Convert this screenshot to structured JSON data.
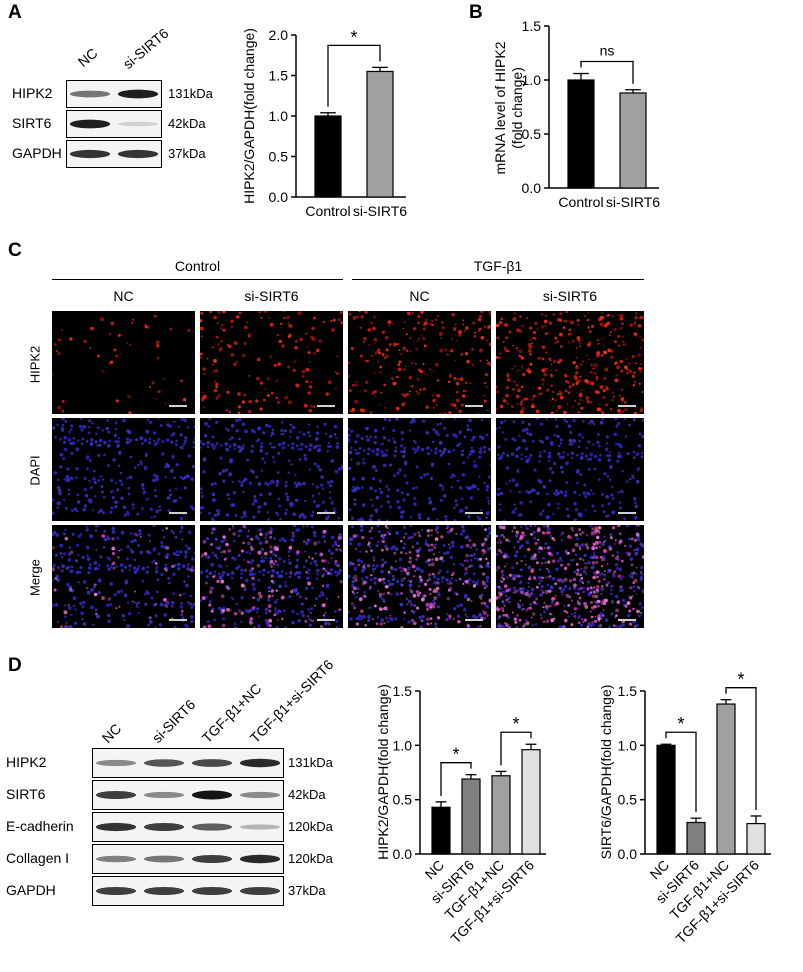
{
  "panels": {
    "A": "A",
    "B": "B",
    "C": "C",
    "D": "D"
  },
  "panelA": {
    "lanes": [
      "NC",
      "si-SIRT6"
    ],
    "bands": [
      {
        "label": "HIPK2",
        "kda": "131kDa",
        "intensity": [
          0.55,
          0.95
        ]
      },
      {
        "label": "SIRT6",
        "kda": "42kDa",
        "intensity": [
          0.95,
          0.12
        ]
      },
      {
        "label": "GAPDH",
        "kda": "37kDa",
        "intensity": [
          0.85,
          0.85
        ]
      }
    ]
  },
  "panelC": {
    "group_headers": [
      "Control",
      "TGF-β1"
    ],
    "columns": [
      "NC",
      "si-SIRT6",
      "NC",
      "si-SIRT6"
    ],
    "rows": [
      "HIPK2",
      "DAPI",
      "Merge"
    ],
    "red_density": [
      0.08,
      0.35,
      0.55,
      0.9
    ]
  },
  "panelD": {
    "lanes": [
      "NC",
      "si-SIRT6",
      "TGF-β1+NC",
      "TGF-β1+si-SIRT6"
    ],
    "bands": [
      {
        "label": "HIPK2",
        "kda": "131kDa",
        "intensity": [
          0.45,
          0.7,
          0.75,
          0.9
        ]
      },
      {
        "label": "SIRT6",
        "kda": "42kDa",
        "intensity": [
          0.8,
          0.45,
          1.0,
          0.45
        ]
      },
      {
        "label": "E-cadherin",
        "kda": "120kDa",
        "intensity": [
          0.85,
          0.8,
          0.65,
          0.25
        ]
      },
      {
        "label": "Collagen I",
        "kda": "120kDa",
        "intensity": [
          0.5,
          0.55,
          0.8,
          0.9
        ]
      },
      {
        "label": "GAPDH",
        "kda": "37kDa",
        "intensity": [
          0.8,
          0.8,
          0.8,
          0.8
        ]
      }
    ]
  },
  "chart_data": [
    {
      "type": "bar",
      "id": "A",
      "categories": [
        "Control",
        "si-SIRT6"
      ],
      "values": [
        1.0,
        1.55
      ],
      "errors": [
        0.04,
        0.05
      ],
      "colors": [
        "#000000",
        "#a0a0a0"
      ],
      "ylabel": "HIPK2/GAPDH(fold change)",
      "ylim": [
        0,
        2.0
      ],
      "yticks": [
        "0.0",
        "0.5",
        "1.0",
        "1.5",
        "2.0"
      ],
      "sig": [
        {
          "from": 0,
          "to": 1,
          "label": "*"
        }
      ]
    },
    {
      "type": "bar",
      "id": "B",
      "categories": [
        "Control",
        "si-SIRT6"
      ],
      "values": [
        1.0,
        0.88
      ],
      "errors": [
        0.06,
        0.03
      ],
      "colors": [
        "#000000",
        "#a0a0a0"
      ],
      "ylabel": "mRNA level of HIPK2 (fold change)",
      "ylim": [
        0,
        1.5
      ],
      "yticks": [
        "0.0",
        "0.5",
        "1.0",
        "1.5"
      ],
      "sig": [
        {
          "from": 0,
          "to": 1,
          "label": "ns"
        }
      ]
    },
    {
      "type": "bar",
      "id": "D1",
      "categories": [
        "NC",
        "si-SIRT6",
        "TGF-β1+NC",
        "TGF-β1+si-SIRT6"
      ],
      "values": [
        0.43,
        0.69,
        0.72,
        0.96
      ],
      "errors": [
        0.05,
        0.04,
        0.04,
        0.05
      ],
      "colors": [
        "#000000",
        "#808080",
        "#a0a0a0",
        "#e0e0e0"
      ],
      "ylabel": "HIPK2/GAPDH(fold change)",
      "ylim": [
        0,
        1.5
      ],
      "yticks": [
        "0.0",
        "0.5",
        "1.0",
        "1.5"
      ],
      "sig": [
        {
          "from": 0,
          "to": 1,
          "label": "*"
        },
        {
          "from": 2,
          "to": 3,
          "label": "*"
        }
      ]
    },
    {
      "type": "bar",
      "id": "D2",
      "categories": [
        "NC",
        "si-SIRT6",
        "TGF-β1+NC",
        "TGF-β1+si-SIRT6"
      ],
      "values": [
        1.0,
        0.29,
        1.38,
        0.28
      ],
      "errors": [
        0.01,
        0.04,
        0.04,
        0.07
      ],
      "colors": [
        "#000000",
        "#808080",
        "#a0a0a0",
        "#e0e0e0"
      ],
      "ylabel": "SIRT6/GAPDH(fold change)",
      "ylim": [
        0,
        1.5
      ],
      "yticks": [
        "0.0",
        "0.5",
        "1.0",
        "1.5"
      ],
      "sig": [
        {
          "from": 0,
          "to": 1,
          "label": "*"
        },
        {
          "from": 2,
          "to": 3,
          "label": "*"
        }
      ]
    }
  ]
}
